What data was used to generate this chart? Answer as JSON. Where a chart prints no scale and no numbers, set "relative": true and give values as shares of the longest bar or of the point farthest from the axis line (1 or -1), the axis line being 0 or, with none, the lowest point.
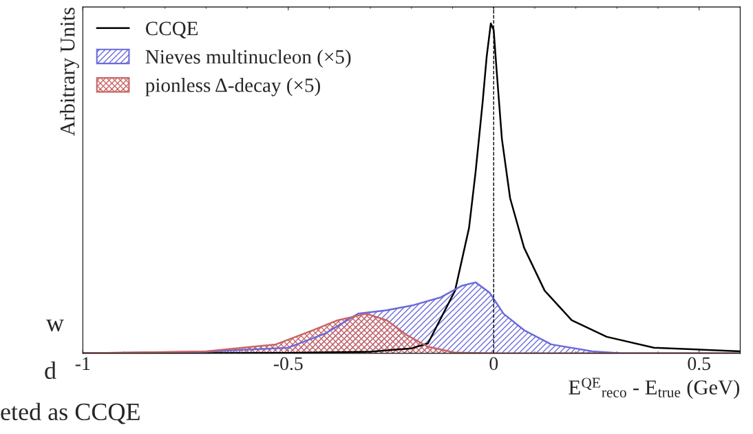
{
  "chart_data": {
    "type": "area",
    "relative": true,
    "ylabel": "Arbitrary Units",
    "xlabel": "E$^{QE}$$_{reco}$ - E$_{true}$ (GeV)",
    "xlim": [
      -1,
      0.6
    ],
    "xticks": [
      -1,
      -0.5,
      0,
      0.5
    ],
    "legend": "top left",
    "grid": false,
    "ref_lines": [
      {
        "axis": "x",
        "value": 0,
        "color": "#000000",
        "line_style": "dashed"
      }
    ],
    "annotations": [
      "w",
      "d",
      "eted as CCQE"
    ],
    "series": [
      {
        "name": "CCQE",
        "type": "line",
        "color": "#000000",
        "x": [
          -1,
          -0.5,
          -0.3,
          -0.2,
          -0.16,
          -0.094,
          -0.06,
          -0.044,
          -0.027,
          -0.017,
          -0.007,
          0,
          0.007,
          0.02,
          0.04,
          0.074,
          0.124,
          0.19,
          0.275,
          0.39,
          0.6
        ],
        "values": [
          0,
          0.001,
          0.005,
          0.015,
          0.03,
          0.19,
          0.38,
          0.55,
          0.76,
          0.9,
          1,
          0.98,
          0.86,
          0.65,
          0.47,
          0.32,
          0.19,
          0.1,
          0.05,
          0.017,
          0.006
        ]
      },
      {
        "name": "Nieves multinucleon (×5)",
        "color": "#6a6adc",
        "x": [
          -1,
          -0.7,
          -0.5,
          -0.41,
          -0.33,
          -0.262,
          -0.195,
          -0.128,
          -0.077,
          -0.044,
          -0.01,
          0.024,
          0.074,
          0.14,
          0.24,
          0.31,
          0.6
        ],
        "values": [
          0,
          0.005,
          0.017,
          0.06,
          0.12,
          0.13,
          0.146,
          0.17,
          0.205,
          0.215,
          0.184,
          0.12,
          0.07,
          0.027,
          0.006,
          0,
          0
        ]
      },
      {
        "name": "pionless Δ-decay (×5)",
        "color": "#c86464",
        "x": [
          -1,
          -0.7,
          -0.53,
          -0.44,
          -0.38,
          -0.31,
          -0.26,
          -0.21,
          -0.16,
          -0.094,
          0,
          0.6
        ],
        "values": [
          0,
          0.006,
          0.027,
          0.07,
          0.1,
          0.12,
          0.1,
          0.054,
          0.02,
          0.002,
          0,
          0
        ]
      }
    ]
  }
}
